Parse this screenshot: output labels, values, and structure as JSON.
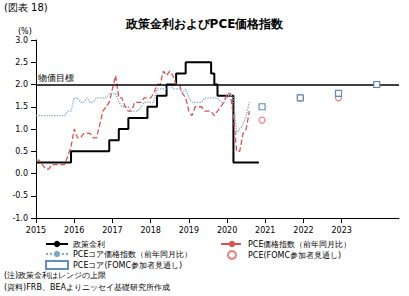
{
  "chart_data": {
    "type": "line",
    "header": "(図表 18)",
    "title": "政策金利およびPCE価格指数",
    "ylabel": "(%)",
    "notes": [
      "(注)政策金利はレンジの上限",
      "(資料)FRB、BEAよりニッセイ基礎研究所作成"
    ],
    "grid": false,
    "legend": "bottom",
    "xlim": [
      2015,
      2024.5
    ],
    "xticks": [
      2015,
      2016,
      2017,
      2018,
      2019,
      2020,
      2021,
      2022,
      2023
    ],
    "ylim": [
      -1,
      3
    ],
    "yticks": [
      {
        "value": -1,
        "label": "-1.0"
      },
      -0.5,
      {
        "value": 0,
        "label": "0.0"
      },
      0.5,
      {
        "value": 1,
        "label": "1.0"
      },
      1.5,
      {
        "value": 2,
        "label": "2.0"
      },
      2.5,
      {
        "value": 3,
        "label": "3.0"
      }
    ],
    "annotations": [
      {
        "text": "物価目標",
        "y": 2
      }
    ],
    "x": [
      2015,
      2015.083,
      2015.167,
      2015.25,
      2015.333,
      2015.417,
      2015.5,
      2015.583,
      2015.667,
      2015.75,
      2015.833,
      2015.917,
      2016,
      2016.083,
      2016.167,
      2016.25,
      2016.333,
      2016.417,
      2016.5,
      2016.583,
      2016.667,
      2016.75,
      2016.833,
      2016.917,
      2017,
      2017.083,
      2017.167,
      2017.25,
      2017.333,
      2017.417,
      2017.5,
      2017.583,
      2017.667,
      2017.75,
      2017.833,
      2017.917,
      2018,
      2018.083,
      2018.167,
      2018.25,
      2018.333,
      2018.417,
      2018.5,
      2018.583,
      2018.667,
      2018.75,
      2018.833,
      2018.917,
      2019,
      2019.083,
      2019.167,
      2019.25,
      2019.333,
      2019.417,
      2019.5,
      2019.583,
      2019.667,
      2019.75,
      2019.833,
      2019.917,
      2020,
      2020.083,
      2020.167,
      2020.25,
      2020.333,
      2020.417,
      2020.5,
      2020.583,
      2020.667,
      2020.75,
      2020.833
    ],
    "series": [
      {
        "name": "政策金利",
        "type": "step",
        "color": "#000000",
        "line_style": "solid",
        "values": [
          0.25,
          0.25,
          0.25,
          0.25,
          0.25,
          0.25,
          0.25,
          0.25,
          0.25,
          0.25,
          0.25,
          0.5,
          0.5,
          0.5,
          0.5,
          0.5,
          0.5,
          0.5,
          0.5,
          0.5,
          0.5,
          0.5,
          0.5,
          0.75,
          0.75,
          0.75,
          1.0,
          1.0,
          1.0,
          1.25,
          1.25,
          1.25,
          1.25,
          1.25,
          1.25,
          1.5,
          1.5,
          1.5,
          1.75,
          1.75,
          1.75,
          2.0,
          2.0,
          2.0,
          2.25,
          2.25,
          2.25,
          2.5,
          2.5,
          2.5,
          2.5,
          2.5,
          2.5,
          2.5,
          2.5,
          2.25,
          2.0,
          1.75,
          1.75,
          1.75,
          1.75,
          1.75,
          0.25,
          0.25,
          0.25,
          0.25,
          0.25,
          0.25,
          0.25,
          0.25,
          0.25
        ]
      },
      {
        "name": "PCE価格指数（前年同月比）",
        "type": "line",
        "color": "#d9534f",
        "line_style": "dashed",
        "values": [
          0.3,
          0.3,
          0.2,
          0.1,
          0.1,
          0.2,
          0.2,
          0.2,
          0.2,
          0.2,
          0.4,
          0.6,
          1.0,
          0.8,
          0.8,
          0.9,
          0.9,
          0.9,
          0.8,
          0.8,
          1.1,
          1.4,
          1.5,
          1.6,
          1.9,
          2.2,
          1.7,
          1.7,
          1.5,
          1.4,
          1.4,
          1.6,
          1.6,
          1.6,
          1.7,
          1.7,
          1.7,
          1.8,
          2.0,
          2.0,
          2.3,
          2.2,
          2.3,
          2.2,
          2.0,
          2.0,
          1.8,
          1.7,
          1.4,
          1.3,
          1.5,
          1.5,
          1.5,
          1.4,
          1.4,
          1.4,
          1.3,
          1.4,
          1.5,
          1.6,
          1.8,
          1.8,
          1.3,
          0.5,
          0.5,
          0.9,
          1.0,
          1.4,
          null,
          null,
          null
        ]
      },
      {
        "name": "PCEコア価格指数（前年同月比）",
        "type": "line",
        "color": "#7fa7c9",
        "line_style": "dotted",
        "values": [
          1.3,
          1.3,
          1.3,
          1.3,
          1.3,
          1.3,
          1.3,
          1.3,
          1.3,
          1.3,
          1.4,
          1.4,
          1.7,
          1.7,
          1.6,
          1.6,
          1.7,
          1.6,
          1.6,
          1.7,
          1.7,
          1.7,
          1.7,
          1.8,
          1.8,
          1.8,
          1.6,
          1.5,
          1.5,
          1.5,
          1.4,
          1.4,
          1.4,
          1.5,
          1.6,
          1.6,
          1.6,
          1.6,
          1.9,
          1.9,
          1.9,
          1.9,
          2.0,
          1.9,
          1.9,
          1.9,
          1.8,
          1.9,
          1.7,
          1.6,
          1.6,
          1.6,
          1.6,
          1.7,
          1.7,
          1.7,
          1.7,
          1.7,
          1.6,
          1.6,
          1.7,
          1.8,
          1.7,
          0.9,
          1.0,
          1.1,
          1.3,
          1.6,
          null,
          null,
          null
        ]
      },
      {
        "name": "PCE(FOMC参加者見通し)",
        "type": "scatter",
        "color": "#e06060",
        "marker": "circle",
        "x": [
          2020.917,
          2021.917,
          2022.917,
          2023.917
        ],
        "values": [
          1.2,
          1.7,
          1.7,
          2.0
        ]
      },
      {
        "name": "PCEコア(FOMC参加者見通し)",
        "type": "scatter",
        "color": "#3b6fb6",
        "marker": "square",
        "x": [
          2020.917,
          2021.917,
          2022.917,
          2023.917
        ],
        "values": [
          1.5,
          1.7,
          1.8,
          2.0
        ]
      }
    ]
  }
}
